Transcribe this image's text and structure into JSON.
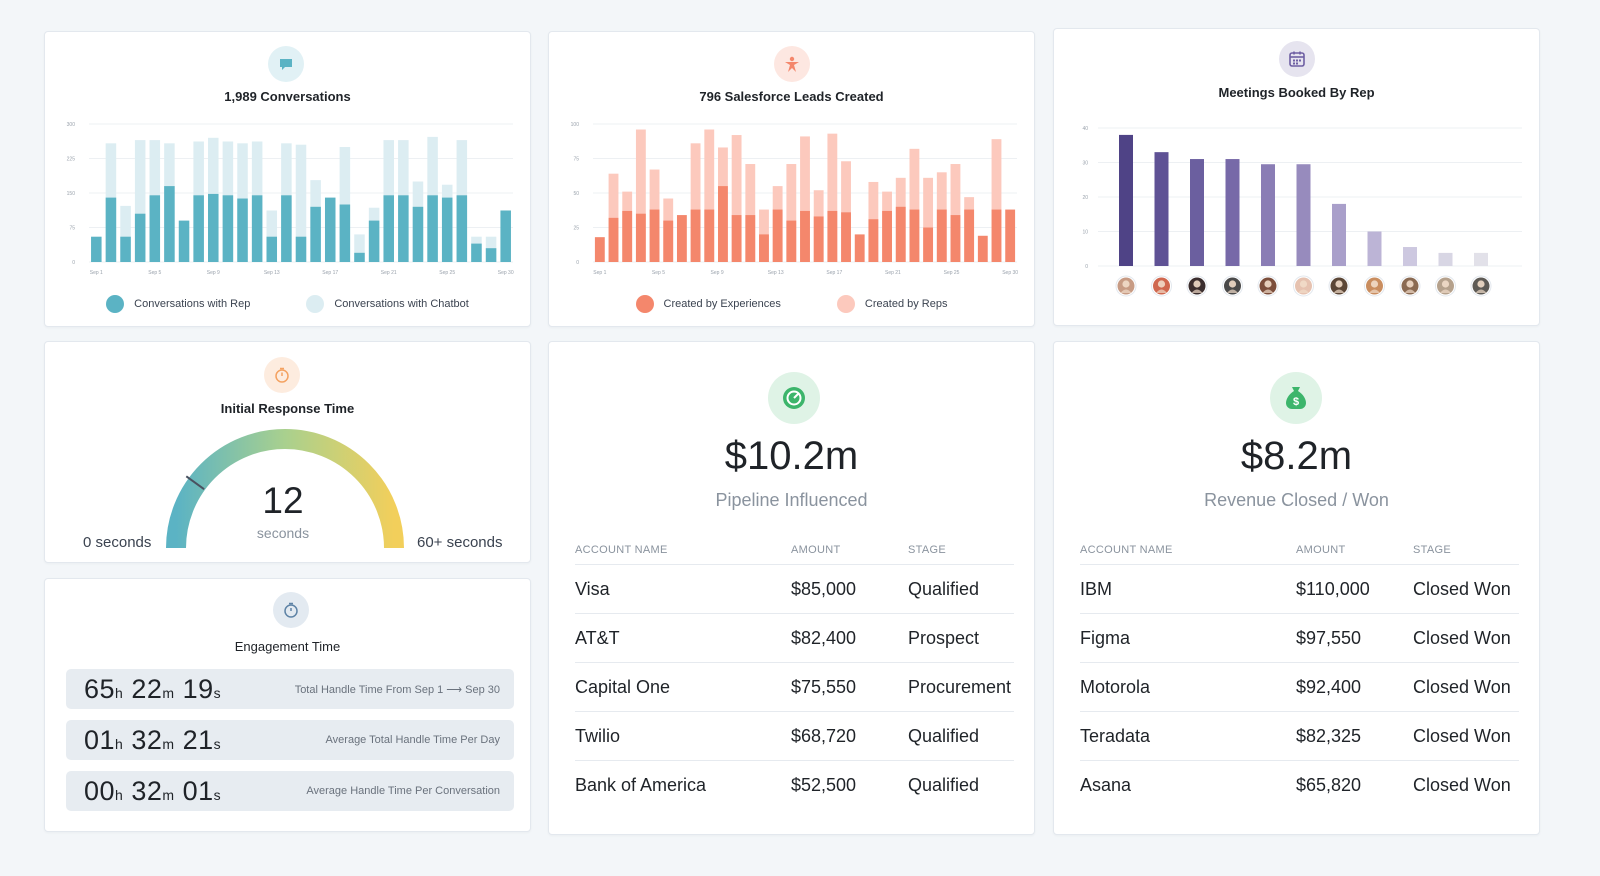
{
  "conversations": {
    "title": "1,989 Conversations",
    "icon": "chat-bubble-icon",
    "accent": "#5bb3c4",
    "chart_data": {
      "type": "bar",
      "ylim": [
        0,
        300
      ],
      "y_ticks": [
        "300",
        "225",
        "150",
        "75",
        "0"
      ],
      "x_ticks": [
        "Sep 1",
        "Sep 5",
        "Sep 9",
        "Sep 13",
        "Sep 17",
        "Sep 21",
        "Sep 25",
        "Sep 30"
      ],
      "series": [
        {
          "name": "Conversations with Rep",
          "color": "#5bb3c4",
          "values": [
            55,
            140,
            55,
            105,
            145,
            165,
            90,
            145,
            148,
            145,
            138,
            145,
            55,
            145,
            55,
            120,
            140,
            125,
            20,
            90,
            145,
            145,
            120,
            145,
            140,
            145,
            40,
            30,
            112
          ]
        },
        {
          "name": "Conversations with Chatbot",
          "color": "#dcedf2",
          "values": [
            0,
            258,
            122,
            265,
            265,
            258,
            0,
            262,
            270,
            262,
            258,
            262,
            112,
            258,
            255,
            178,
            0,
            250,
            60,
            118,
            265,
            265,
            175,
            272,
            168,
            265,
            55,
            55,
            0
          ]
        }
      ]
    }
  },
  "leads": {
    "title": "796 Salesforce Leads Created",
    "icon": "star-person-icon",
    "accent": "#f4876c",
    "chart_data": {
      "type": "bar",
      "ylim": [
        0,
        100
      ],
      "y_ticks": [
        "100",
        "75",
        "50",
        "25",
        "0"
      ],
      "x_ticks": [
        "Sep 1",
        "Sep 5",
        "Sep 9",
        "Sep 13",
        "Sep 17",
        "Sep 21",
        "Sep 25",
        "Sep 30"
      ],
      "series": [
        {
          "name": "Created by Experiences",
          "color": "#f4876c",
          "values": [
            18,
            32,
            37,
            35,
            38,
            30,
            34,
            38,
            38,
            55,
            34,
            34,
            20,
            38,
            30,
            37,
            33,
            37,
            36,
            20,
            31,
            37,
            40,
            38,
            25,
            38,
            34,
            38,
            19,
            38,
            38
          ]
        },
        {
          "name": "Created by Reps",
          "color": "#fcc9bd",
          "values": [
            0,
            64,
            51,
            96,
            67,
            46,
            0,
            86,
            96,
            83,
            92,
            71,
            38,
            55,
            71,
            91,
            52,
            93,
            73,
            0,
            58,
            51,
            61,
            82,
            61,
            65,
            71,
            47,
            0,
            89,
            0
          ]
        }
      ]
    }
  },
  "meetings": {
    "title": "Meetings Booked By Rep",
    "icon": "calendar-icon",
    "accent": "#6e5fa3",
    "chart_data": {
      "type": "bar",
      "ylim": [
        0,
        40
      ],
      "y_ticks": [
        "40",
        "30",
        "20",
        "10",
        "0"
      ],
      "values": [
        38,
        33,
        31,
        31,
        29.5,
        29.5,
        18,
        10,
        5.5,
        3.8,
        3.8
      ],
      "colors": [
        "#4f4386",
        "#5f5295",
        "#6b5f9f",
        "#7769a8",
        "#8a7db5",
        "#978bbd",
        "#a99fca",
        "#bcb4d6",
        "#cdc8e0",
        "#d8d6e4",
        "#e2e1e9"
      ],
      "avatar_colors": [
        "#c79b84",
        "#d0684f",
        "#3b2e2e",
        "#4a4a4a",
        "#7c4e3b",
        "#e6c2b0",
        "#5b4636",
        "#c98d5f",
        "#8a6a52",
        "#b5a18c",
        "#5d5a55"
      ]
    }
  },
  "response_time": {
    "title": "Initial Response Time",
    "icon": "timer-icon",
    "value": "12",
    "unit": "seconds",
    "min_label": "0 seconds",
    "max_label": "60+ seconds",
    "gauge_fraction": 0.2
  },
  "engagement": {
    "title": "Engagement Time",
    "icon": "stopwatch-icon",
    "rows": [
      {
        "h": "65",
        "m": "22",
        "s": "19",
        "label": "Total Handle Time From Sep 1 ⟶ Sep 30"
      },
      {
        "h": "01",
        "m": "32",
        "s": "21",
        "label": "Average Total Handle Time Per Day"
      },
      {
        "h": "00",
        "m": "32",
        "s": "01",
        "label": "Average Handle Time Per Conversation"
      }
    ],
    "units": {
      "h": "h",
      "m": "m",
      "s": "s"
    }
  },
  "pipeline": {
    "icon": "gauge-icon",
    "value": "$10.2m",
    "label": "Pipeline Influenced",
    "columns": [
      "ACCOUNT NAME",
      "AMOUNT",
      "STAGE"
    ],
    "rows": [
      [
        "Visa",
        "$85,000",
        "Qualified"
      ],
      [
        "AT&T",
        "$82,400",
        "Prospect"
      ],
      [
        "Capital One",
        "$75,550",
        "Procurement"
      ],
      [
        "Twilio",
        "$68,720",
        "Qualified"
      ],
      [
        "Bank of America",
        "$52,500",
        "Qualified"
      ]
    ]
  },
  "revenue": {
    "icon": "money-bag-icon",
    "value": "$8.2m",
    "label": "Revenue Closed / Won",
    "columns": [
      "ACCOUNT NAME",
      "AMOUNT",
      "STAGE"
    ],
    "rows": [
      [
        "IBM",
        "$110,000",
        "Closed Won"
      ],
      [
        "Figma",
        "$97,550",
        "Closed Won"
      ],
      [
        "Motorola",
        "$92,400",
        "Closed Won"
      ],
      [
        "Teradata",
        "$82,325",
        "Closed Won"
      ],
      [
        "Asana",
        "$65,820",
        "Closed Won"
      ]
    ]
  }
}
